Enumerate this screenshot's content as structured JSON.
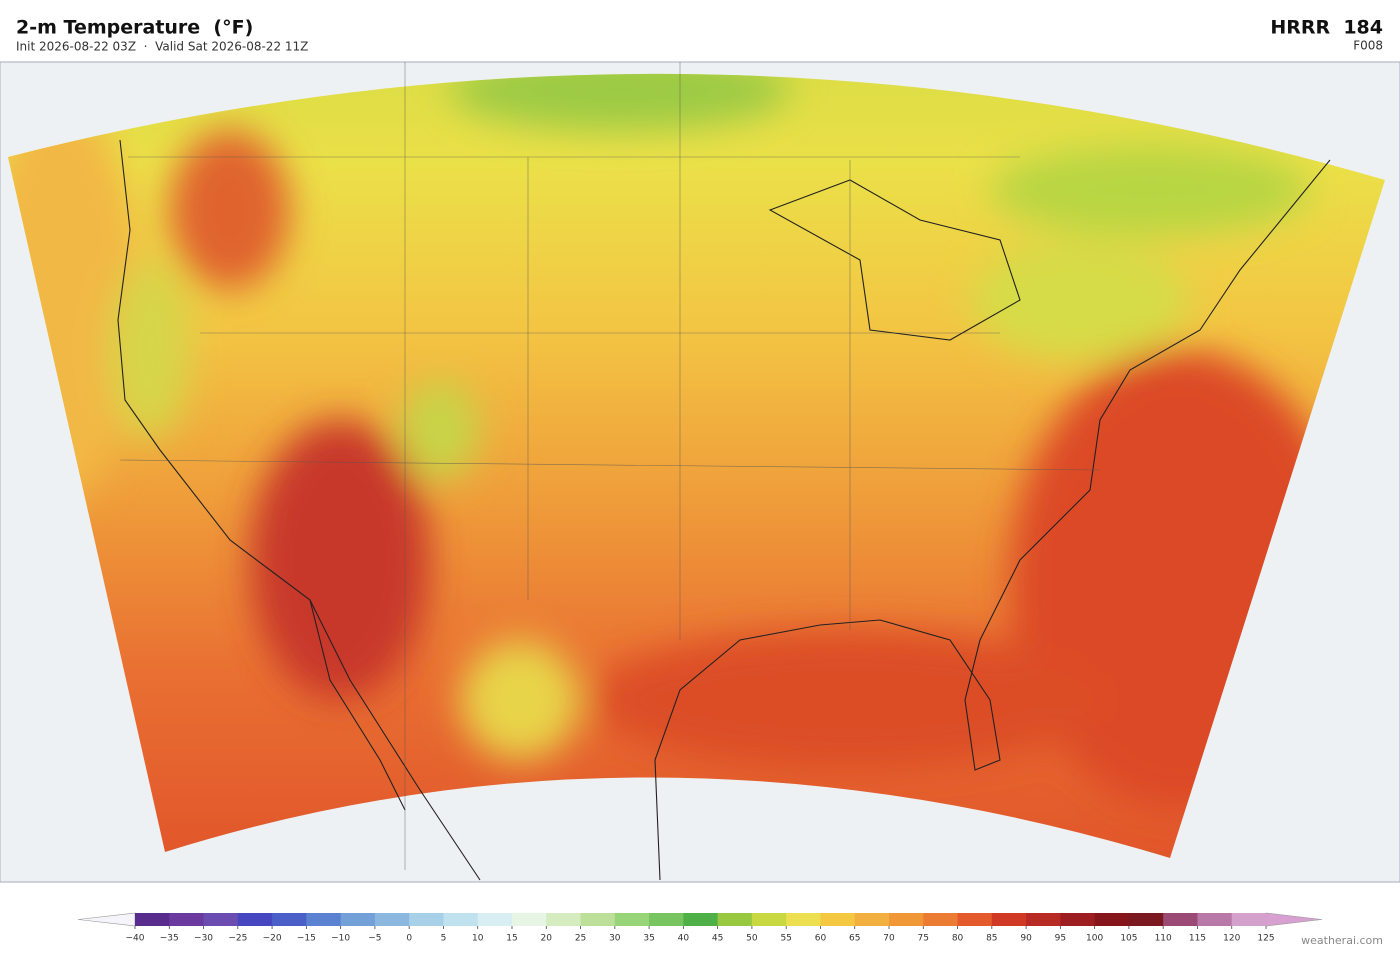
{
  "header": {
    "title": "2-m Temperature  (°F)",
    "subtitle": "Init 2026-08-22 03Z  ·  Valid Sat 2026-08-22 11Z",
    "model": "HRRR  184",
    "forecast_hour": "F008"
  },
  "colorbar": {
    "ticks": [
      {
        "value": -40,
        "label": "−40"
      },
      {
        "value": -35,
        "label": "−35"
      },
      {
        "value": -30,
        "label": "−30"
      },
      {
        "value": -25,
        "label": "−25"
      },
      {
        "value": -20,
        "label": "−20"
      },
      {
        "value": -15,
        "label": "−15"
      },
      {
        "value": -10,
        "label": "−10"
      },
      {
        "value": -5,
        "label": "−5"
      },
      0,
      5,
      10,
      15,
      20,
      25,
      30,
      35,
      40,
      45,
      50,
      55,
      60,
      65,
      70,
      75,
      80,
      85,
      90,
      95,
      100,
      105,
      110,
      115,
      120,
      125
    ],
    "colors": [
      "#582c8c",
      "#6a3a9e",
      "#6b4cb0",
      "#4646c0",
      "#4a60c8",
      "#5a82d0",
      "#74a0d8",
      "#8cb8e0",
      "#a8d0e8",
      "#c0e2ee",
      "#d8eef2",
      "#e6f5e4",
      "#d4ecc0",
      "#bce09a",
      "#98d478",
      "#78c460",
      "#50b048",
      "#98c840",
      "#c8d840",
      "#ece050",
      "#f4c840",
      "#f2b040",
      "#f09838",
      "#ec7c34",
      "#e45a2c",
      "#d03a24",
      "#b82a24",
      "#9c1e20",
      "#86161c",
      "#7a1a20",
      "#9a4a74",
      "#b878a8",
      "#d4a0cc"
    ],
    "under_color": "#f4f4fa",
    "over_color": "#d8a0d0"
  },
  "credit": "weatherai.com"
}
